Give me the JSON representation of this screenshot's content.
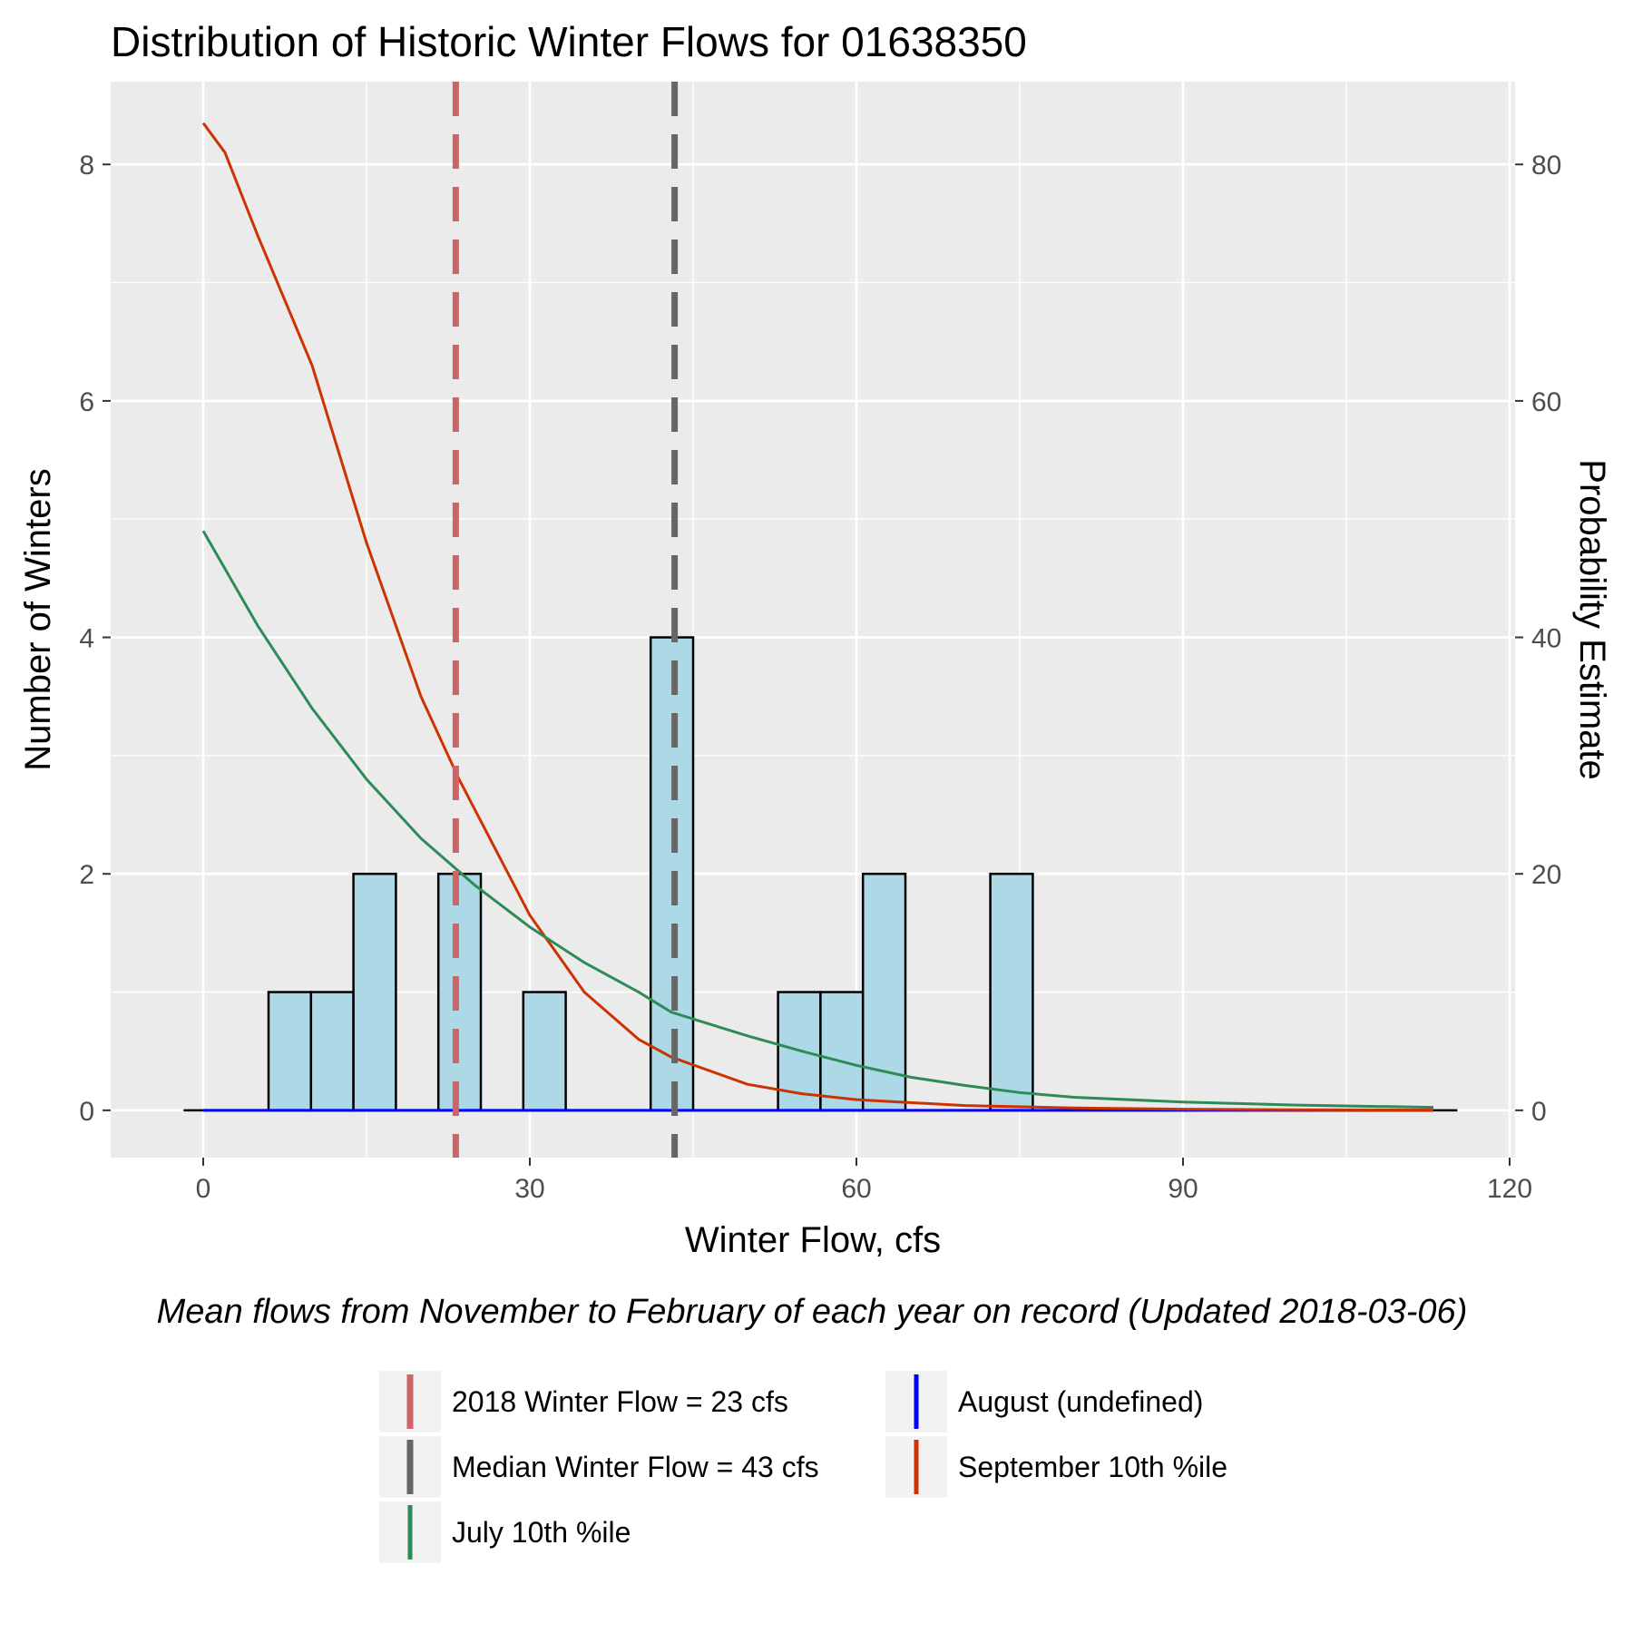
{
  "chart_data": {
    "type": "bar",
    "title": "Distribution of Historic Winter Flows for 01638350",
    "xlabel": "Winter Flow, cfs",
    "ylabel": "Number of Winters",
    "y2label": "Probability Estimate",
    "caption": "Mean flows from November to February of each year on record (Updated 2018-03-06)",
    "xlim": [
      -8.5,
      120.5
    ],
    "ylim": [
      -0.4,
      8.7
    ],
    "y2_scale": 10,
    "grid": true,
    "x_ticks": [
      0,
      30,
      60,
      90,
      120
    ],
    "y_ticks": [
      0,
      2,
      4,
      6,
      8
    ],
    "y2_ticks": [
      0,
      20,
      40,
      60,
      80
    ],
    "histogram": {
      "bin_width": 3.9,
      "fill": "#add8e6",
      "bins": [
        {
          "x0": 6.0,
          "x1": 9.9,
          "count": 1
        },
        {
          "x0": 9.9,
          "x1": 13.8,
          "count": 1
        },
        {
          "x0": 13.8,
          "x1": 17.7,
          "count": 2
        },
        {
          "x0": 21.6,
          "x1": 25.5,
          "count": 2
        },
        {
          "x0": 29.4,
          "x1": 33.3,
          "count": 1
        },
        {
          "x0": 41.1,
          "x1": 45.0,
          "count": 4
        },
        {
          "x0": 52.8,
          "x1": 56.7,
          "count": 1
        },
        {
          "x0": 56.7,
          "x1": 60.6,
          "count": 1
        },
        {
          "x0": 60.6,
          "x1": 64.5,
          "count": 2
        },
        {
          "x0": 72.3,
          "x1": 76.2,
          "count": 2
        }
      ],
      "baseline": [
        -1.8,
        115.2
      ]
    },
    "vlines": [
      {
        "name": "2018  Winter Flow = 23 cfs",
        "x": 23.2,
        "color": "#cd6466"
      },
      {
        "name": "Median Winter Flow = 43 cfs",
        "x": 43.3,
        "color": "#666666"
      }
    ],
    "series": [
      {
        "name": "September 10th %ile",
        "color": "#cc3300",
        "x": [
          0,
          2,
          5,
          10,
          15,
          20,
          23.5,
          30,
          35,
          40,
          43,
          50,
          55,
          60,
          70,
          80,
          90,
          100,
          113
        ],
        "y": [
          83.5,
          81,
          74,
          63,
          48,
          35,
          28,
          16.5,
          10,
          6,
          4.5,
          2.2,
          1.4,
          0.9,
          0.4,
          0.2,
          0.1,
          0.05,
          0.02
        ]
      },
      {
        "name": "July 10th %ile",
        "color": "#2e8b57",
        "x": [
          0,
          5,
          10,
          15,
          20,
          25,
          30,
          35,
          40,
          43,
          50,
          55,
          60,
          65,
          70,
          75,
          80,
          90,
          100,
          113
        ],
        "y": [
          49,
          41,
          34,
          28,
          23,
          19,
          15.5,
          12.5,
          10,
          8.3,
          6.3,
          5,
          3.8,
          2.8,
          2.1,
          1.5,
          1.1,
          0.7,
          0.45,
          0.25
        ]
      },
      {
        "name": "August (undefined)",
        "color": "#0000ff",
        "x": [
          0,
          113
        ],
        "y": [
          0,
          0
        ]
      }
    ],
    "legend": {
      "position": "bottom",
      "items": [
        {
          "label": "2018  Winter Flow = 23 cfs",
          "color": "#cd6466",
          "style": "dashed"
        },
        {
          "label": "Median Winter Flow = 43 cfs",
          "color": "#666666",
          "style": "dashed"
        },
        {
          "label": "July 10th %ile",
          "color": "#2e8b57",
          "style": "solid"
        },
        {
          "label": "August (undefined)",
          "color": "#0000ff",
          "style": "solid"
        },
        {
          "label": "September 10th %ile",
          "color": "#cc3300",
          "style": "solid"
        }
      ]
    }
  }
}
